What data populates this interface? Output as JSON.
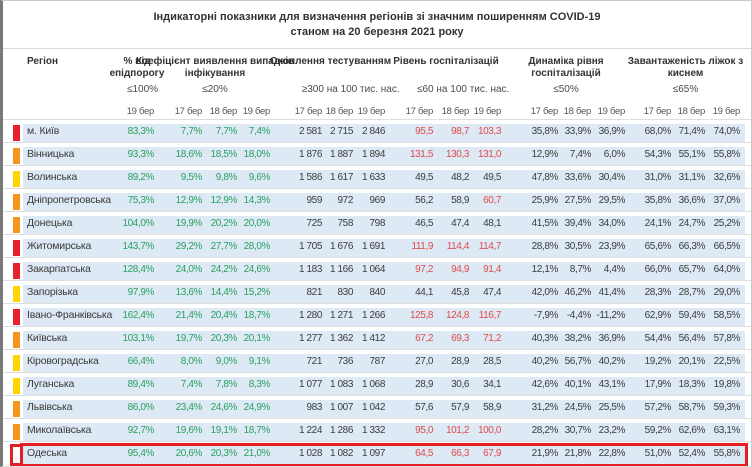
{
  "title": {
    "line1": "Індикаторні показники для визначення регіонів зі значним поширенням COVID-19",
    "line2": "станом на 20 березня 2021 року"
  },
  "columns": {
    "region_label": "Регіон",
    "groups": [
      {
        "title": "% від епідпорогу",
        "threshold": "≤100%",
        "dates": [
          "19 бер"
        ]
      },
      {
        "title": "Коефіцієнт виявлення випадків інфікування",
        "threshold": "≤20%",
        "dates": [
          "17 бер",
          "18 бер",
          "19 бер"
        ]
      },
      {
        "title": "Охоплення тестуванням",
        "threshold": "≥300 на 100 тис. нас.",
        "dates": [
          "17 бер",
          "18 бер",
          "19 бер"
        ]
      },
      {
        "title": "Рівень госпіталізацій",
        "threshold": "≤60 на 100 тис. нас.",
        "dates": [
          "17 бер",
          "18 бер",
          "19 бер"
        ]
      },
      {
        "title": "Динаміка рівня госпіталізацій",
        "threshold": "≤50%",
        "dates": [
          "17 бер",
          "18 бер",
          "19 бер"
        ]
      },
      {
        "title": "Завантаженість ліжок з киснем",
        "threshold": "≤65%",
        "dates": [
          "17 бер",
          "18 бер",
          "19 бер"
        ]
      }
    ]
  },
  "colors": {
    "green": "#2aa061",
    "red_text": "#e14b4b",
    "row_bg": "#dde9f4",
    "highlight_border": "#e31e24",
    "markers": {
      "red": "#e8212c",
      "orange": "#f7941e",
      "yellow": "#ffd400",
      "white": "#ffffff"
    }
  },
  "rows": [
    {
      "region": "м. Київ",
      "marker": "red",
      "highlight": false,
      "epid": "83,3%",
      "koef": [
        "7,7%",
        "7,7%",
        "7,4%"
      ],
      "test": [
        "2 581",
        "2 715",
        "2 846"
      ],
      "hosp": [
        "95,5",
        "98,7",
        "103,3"
      ],
      "hosp_red": [
        true,
        true,
        true
      ],
      "dyn": [
        "35,8%",
        "33,9%",
        "36,9%"
      ],
      "oxy": [
        "68,0%",
        "71,4%",
        "74,0%"
      ]
    },
    {
      "region": "Вінницька",
      "marker": "orange",
      "highlight": false,
      "epid": "93,3%",
      "koef": [
        "18,6%",
        "18,5%",
        "18,0%"
      ],
      "test": [
        "1 876",
        "1 887",
        "1 894"
      ],
      "hosp": [
        "131,5",
        "130,3",
        "131,0"
      ],
      "hosp_red": [
        true,
        true,
        true
      ],
      "dyn": [
        "12,9%",
        "7,4%",
        "6,0%"
      ],
      "oxy": [
        "54,3%",
        "55,1%",
        "55,8%"
      ]
    },
    {
      "region": "Волинська",
      "marker": "yellow",
      "highlight": false,
      "epid": "89,2%",
      "koef": [
        "9,5%",
        "9,8%",
        "9,6%"
      ],
      "test": [
        "1 586",
        "1 617",
        "1 633"
      ],
      "hosp": [
        "49,5",
        "48,2",
        "49,5"
      ],
      "hosp_red": [
        false,
        false,
        false
      ],
      "dyn": [
        "47,8%",
        "33,6%",
        "30,4%"
      ],
      "oxy": [
        "31,0%",
        "31,1%",
        "32,6%"
      ]
    },
    {
      "region": "Дніпропетровська",
      "marker": "orange",
      "highlight": false,
      "epid": "75,3%",
      "koef": [
        "12,9%",
        "12,9%",
        "14,3%"
      ],
      "test": [
        "959",
        "972",
        "969"
      ],
      "hosp": [
        "56,2",
        "58,9",
        "60,7"
      ],
      "hosp_red": [
        false,
        false,
        true
      ],
      "dyn": [
        "25,9%",
        "27,5%",
        "29,5%"
      ],
      "oxy": [
        "35,8%",
        "36,6%",
        "37,0%"
      ]
    },
    {
      "region": "Донецька",
      "marker": "orange",
      "highlight": false,
      "epid": "104,0%",
      "koef": [
        "19,9%",
        "20,2%",
        "20,0%"
      ],
      "test": [
        "725",
        "758",
        "798"
      ],
      "hosp": [
        "46,5",
        "47,4",
        "48,1"
      ],
      "hosp_red": [
        false,
        false,
        false
      ],
      "dyn": [
        "41,5%",
        "39,4%",
        "34,0%"
      ],
      "oxy": [
        "24,1%",
        "24,7%",
        "25,2%"
      ]
    },
    {
      "region": "Житомирська",
      "marker": "red",
      "highlight": false,
      "epid": "143,7%",
      "koef": [
        "29,2%",
        "27,7%",
        "28,0%"
      ],
      "test": [
        "1 705",
        "1 676",
        "1 691"
      ],
      "hosp": [
        "111,9",
        "114,4",
        "114,7"
      ],
      "hosp_red": [
        true,
        true,
        true
      ],
      "dyn": [
        "28,8%",
        "30,5%",
        "23,9%"
      ],
      "oxy": [
        "65,6%",
        "66,3%",
        "66,5%"
      ]
    },
    {
      "region": "Закарпатська",
      "marker": "red",
      "highlight": false,
      "epid": "128,4%",
      "koef": [
        "24,0%",
        "24,2%",
        "24,6%"
      ],
      "test": [
        "1 183",
        "1 166",
        "1 064"
      ],
      "hosp": [
        "97,2",
        "94,9",
        "91,4"
      ],
      "hosp_red": [
        true,
        true,
        true
      ],
      "dyn": [
        "12,1%",
        "8,7%",
        "4,4%"
      ],
      "oxy": [
        "66,0%",
        "65,7%",
        "64,0%"
      ]
    },
    {
      "region": "Запорізька",
      "marker": "yellow",
      "highlight": false,
      "epid": "97,9%",
      "koef": [
        "13,6%",
        "14,4%",
        "15,2%"
      ],
      "test": [
        "821",
        "830",
        "840"
      ],
      "hosp": [
        "44,1",
        "45,8",
        "47,4"
      ],
      "hosp_red": [
        false,
        false,
        false
      ],
      "dyn": [
        "42,0%",
        "46,2%",
        "41,4%"
      ],
      "oxy": [
        "28,3%",
        "28,7%",
        "29,0%"
      ]
    },
    {
      "region": "Івано-Франківська",
      "marker": "red",
      "highlight": false,
      "epid": "162,4%",
      "koef": [
        "21,4%",
        "20,4%",
        "18,7%"
      ],
      "test": [
        "1 280",
        "1 271",
        "1 266"
      ],
      "hosp": [
        "125,8",
        "124,8",
        "116,7"
      ],
      "hosp_red": [
        true,
        true,
        true
      ],
      "dyn": [
        "-7,9%",
        "-4,4%",
        "-11,2%"
      ],
      "oxy": [
        "62,9%",
        "59,4%",
        "58,5%"
      ]
    },
    {
      "region": "Київська",
      "marker": "orange",
      "highlight": false,
      "epid": "103,1%",
      "koef": [
        "19,7%",
        "20,3%",
        "20,1%"
      ],
      "test": [
        "1 277",
        "1 362",
        "1 412"
      ],
      "hosp": [
        "67,2",
        "69,3",
        "71,2"
      ],
      "hosp_red": [
        true,
        true,
        true
      ],
      "dyn": [
        "40,3%",
        "38,2%",
        "36,9%"
      ],
      "oxy": [
        "54,4%",
        "56,4%",
        "57,8%"
      ]
    },
    {
      "region": "Кіровоградська",
      "marker": "yellow",
      "highlight": false,
      "epid": "66,4%",
      "koef": [
        "8,0%",
        "9,0%",
        "9,1%"
      ],
      "test": [
        "721",
        "736",
        "787"
      ],
      "hosp": [
        "27,0",
        "28,9",
        "28,5"
      ],
      "hosp_red": [
        false,
        false,
        false
      ],
      "dyn": [
        "40,2%",
        "56,7%",
        "40,2%"
      ],
      "oxy": [
        "19,2%",
        "20,1%",
        "22,5%"
      ]
    },
    {
      "region": "Луганська",
      "marker": "yellow",
      "highlight": false,
      "epid": "89,4%",
      "koef": [
        "7,4%",
        "7,8%",
        "8,3%"
      ],
      "test": [
        "1 077",
        "1 083",
        "1 068"
      ],
      "hosp": [
        "28,9",
        "30,6",
        "34,1"
      ],
      "hosp_red": [
        false,
        false,
        false
      ],
      "dyn": [
        "42,6%",
        "40,1%",
        "43,1%"
      ],
      "oxy": [
        "17,9%",
        "18,3%",
        "19,8%"
      ]
    },
    {
      "region": "Львівська",
      "marker": "orange",
      "highlight": false,
      "epid": "86,0%",
      "koef": [
        "23,4%",
        "24,6%",
        "24,9%"
      ],
      "test": [
        "983",
        "1 007",
        "1 042"
      ],
      "hosp": [
        "57,6",
        "57,9",
        "58,9"
      ],
      "hosp_red": [
        false,
        false,
        false
      ],
      "dyn": [
        "31,2%",
        "24,5%",
        "25,5%"
      ],
      "oxy": [
        "57,2%",
        "58,7%",
        "59,3%"
      ]
    },
    {
      "region": "Миколаївська",
      "marker": "orange",
      "highlight": false,
      "epid": "92,7%",
      "koef": [
        "19,6%",
        "19,1%",
        "18,7%"
      ],
      "test": [
        "1 224",
        "1 286",
        "1 332"
      ],
      "hosp": [
        "95,0",
        "101,2",
        "100,0"
      ],
      "hosp_red": [
        true,
        true,
        true
      ],
      "dyn": [
        "28,2%",
        "30,7%",
        "23,2%"
      ],
      "oxy": [
        "59,2%",
        "62,6%",
        "63,1%"
      ]
    },
    {
      "region": "Одеська",
      "marker": "white",
      "highlight": true,
      "epid": "95,4%",
      "koef": [
        "20,6%",
        "20,3%",
        "21,0%"
      ],
      "test": [
        "1 028",
        "1 082",
        "1 097"
      ],
      "hosp": [
        "64,5",
        "66,3",
        "67,9"
      ],
      "hosp_red": [
        true,
        true,
        true
      ],
      "dyn": [
        "21,9%",
        "21,8%",
        "22,8%"
      ],
      "oxy": [
        "51,0%",
        "52,4%",
        "55,8%"
      ]
    }
  ]
}
